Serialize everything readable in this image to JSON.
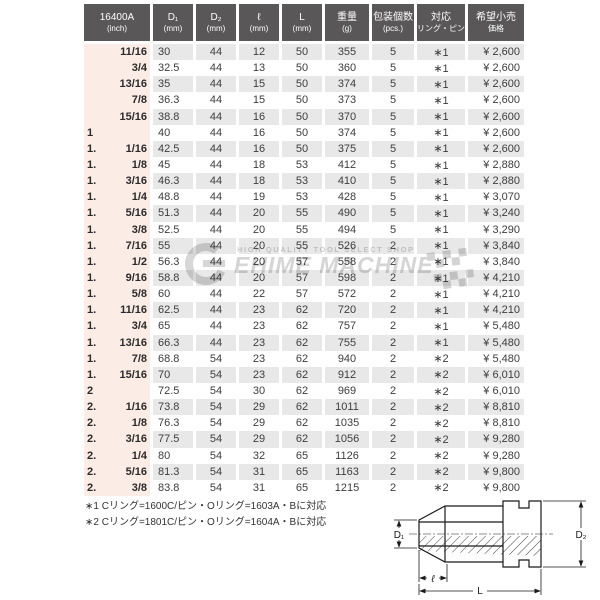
{
  "table": {
    "columns": [
      {
        "id": "inch",
        "line1": "16400A",
        "line2": "(inch)"
      },
      {
        "id": "d1",
        "line1": "D₁",
        "line2": "(mm)"
      },
      {
        "id": "d2",
        "line1": "D₂",
        "line2": "(mm)"
      },
      {
        "id": "ell",
        "line1": "ℓ",
        "line2": "(mm)"
      },
      {
        "id": "L",
        "line1": "L",
        "line2": "(mm)"
      },
      {
        "id": "weight",
        "line1": "重量",
        "line2": "(g)"
      },
      {
        "id": "pcs",
        "line1": "包装個数",
        "line2": "(pcs.)"
      },
      {
        "id": "ring",
        "line1": "対応",
        "line2": "リング・ピン"
      },
      {
        "id": "price",
        "line1": "希望小売",
        "line2": "価格"
      }
    ],
    "rows": [
      {
        "inch_whole": "",
        "inch_frac": "11/16",
        "d1": "30",
        "d2": "44",
        "ell": "12",
        "L": "50",
        "weight": "355",
        "pcs": "5",
        "ring": "∗1",
        "price": "¥ 2,600"
      },
      {
        "inch_whole": "",
        "inch_frac": "3/4",
        "d1": "32.5",
        "d2": "44",
        "ell": "13",
        "L": "50",
        "weight": "360",
        "pcs": "5",
        "ring": "∗1",
        "price": "¥ 2,600"
      },
      {
        "inch_whole": "",
        "inch_frac": "13/16",
        "d1": "35",
        "d2": "44",
        "ell": "15",
        "L": "50",
        "weight": "374",
        "pcs": "5",
        "ring": "∗1",
        "price": "¥ 2,600"
      },
      {
        "inch_whole": "",
        "inch_frac": "7/8",
        "d1": "36.3",
        "d2": "44",
        "ell": "15",
        "L": "50",
        "weight": "373",
        "pcs": "5",
        "ring": "∗1",
        "price": "¥ 2,600"
      },
      {
        "inch_whole": "",
        "inch_frac": "15/16",
        "d1": "38.8",
        "d2": "44",
        "ell": "16",
        "L": "50",
        "weight": "370",
        "pcs": "5",
        "ring": "∗1",
        "price": "¥ 2,600"
      },
      {
        "inch_whole": "1",
        "inch_frac": "",
        "d1": "40",
        "d2": "44",
        "ell": "16",
        "L": "50",
        "weight": "374",
        "pcs": "5",
        "ring": "∗1",
        "price": "¥ 2,600"
      },
      {
        "inch_whole": "1.",
        "inch_frac": "1/16",
        "d1": "42.5",
        "d2": "44",
        "ell": "16",
        "L": "50",
        "weight": "375",
        "pcs": "5",
        "ring": "∗1",
        "price": "¥ 2,600"
      },
      {
        "inch_whole": "1.",
        "inch_frac": "1/8",
        "d1": "45",
        "d2": "44",
        "ell": "18",
        "L": "53",
        "weight": "412",
        "pcs": "5",
        "ring": "∗1",
        "price": "¥ 2,880"
      },
      {
        "inch_whole": "1.",
        "inch_frac": "3/16",
        "d1": "46.3",
        "d2": "44",
        "ell": "18",
        "L": "53",
        "weight": "410",
        "pcs": "5",
        "ring": "∗1",
        "price": "¥ 2,880"
      },
      {
        "inch_whole": "1.",
        "inch_frac": "1/4",
        "d1": "48.8",
        "d2": "44",
        "ell": "19",
        "L": "53",
        "weight": "428",
        "pcs": "5",
        "ring": "∗1",
        "price": "¥ 3,070"
      },
      {
        "inch_whole": "1.",
        "inch_frac": "5/16",
        "d1": "51.3",
        "d2": "44",
        "ell": "20",
        "L": "55",
        "weight": "490",
        "pcs": "5",
        "ring": "∗1",
        "price": "¥ 3,240"
      },
      {
        "inch_whole": "1.",
        "inch_frac": "3/8",
        "d1": "52.5",
        "d2": "44",
        "ell": "20",
        "L": "55",
        "weight": "494",
        "pcs": "5",
        "ring": "∗1",
        "price": "¥ 3,290"
      },
      {
        "inch_whole": "1.",
        "inch_frac": "7/16",
        "d1": "55",
        "d2": "44",
        "ell": "20",
        "L": "55",
        "weight": "526",
        "pcs": "2",
        "ring": "∗1",
        "price": "¥ 3,840"
      },
      {
        "inch_whole": "1.",
        "inch_frac": "1/2",
        "d1": "56.3",
        "d2": "44",
        "ell": "20",
        "L": "57",
        "weight": "558",
        "pcs": "2",
        "ring": "∗1",
        "price": "¥ 3,840"
      },
      {
        "inch_whole": "1.",
        "inch_frac": "9/16",
        "d1": "58.8",
        "d2": "44",
        "ell": "20",
        "L": "57",
        "weight": "598",
        "pcs": "2",
        "ring": "∗1",
        "price": "¥ 4,210"
      },
      {
        "inch_whole": "1.",
        "inch_frac": "5/8",
        "d1": "60",
        "d2": "44",
        "ell": "22",
        "L": "57",
        "weight": "572",
        "pcs": "2",
        "ring": "∗1",
        "price": "¥ 4,210"
      },
      {
        "inch_whole": "1.",
        "inch_frac": "11/16",
        "d1": "62.5",
        "d2": "44",
        "ell": "23",
        "L": "62",
        "weight": "720",
        "pcs": "2",
        "ring": "∗1",
        "price": "¥ 4,210"
      },
      {
        "inch_whole": "1.",
        "inch_frac": "3/4",
        "d1": "65",
        "d2": "44",
        "ell": "23",
        "L": "62",
        "weight": "757",
        "pcs": "2",
        "ring": "∗1",
        "price": "¥ 5,480"
      },
      {
        "inch_whole": "1.",
        "inch_frac": "13/16",
        "d1": "66.3",
        "d2": "44",
        "ell": "23",
        "L": "62",
        "weight": "755",
        "pcs": "2",
        "ring": "∗1",
        "price": "¥ 5,480"
      },
      {
        "inch_whole": "1.",
        "inch_frac": "7/8",
        "d1": "68.8",
        "d2": "54",
        "ell": "23",
        "L": "62",
        "weight": "940",
        "pcs": "2",
        "ring": "∗2",
        "price": "¥ 5,480"
      },
      {
        "inch_whole": "1.",
        "inch_frac": "15/16",
        "d1": "70",
        "d2": "54",
        "ell": "23",
        "L": "62",
        "weight": "912",
        "pcs": "2",
        "ring": "∗2",
        "price": "¥ 6,010"
      },
      {
        "inch_whole": "2",
        "inch_frac": "",
        "d1": "72.5",
        "d2": "54",
        "ell": "30",
        "L": "62",
        "weight": "969",
        "pcs": "2",
        "ring": "∗2",
        "price": "¥ 6,010"
      },
      {
        "inch_whole": "2.",
        "inch_frac": "1/16",
        "d1": "73.8",
        "d2": "54",
        "ell": "29",
        "L": "62",
        "weight": "1011",
        "pcs": "2",
        "ring": "∗2",
        "price": "¥ 8,810"
      },
      {
        "inch_whole": "2.",
        "inch_frac": "1/8",
        "d1": "76.3",
        "d2": "54",
        "ell": "29",
        "L": "62",
        "weight": "1035",
        "pcs": "2",
        "ring": "∗2",
        "price": "¥ 8,810"
      },
      {
        "inch_whole": "2.",
        "inch_frac": "3/16",
        "d1": "77.5",
        "d2": "54",
        "ell": "29",
        "L": "62",
        "weight": "1056",
        "pcs": "2",
        "ring": "∗2",
        "price": "¥ 9,280"
      },
      {
        "inch_whole": "2.",
        "inch_frac": "1/4",
        "d1": "80",
        "d2": "54",
        "ell": "32",
        "L": "65",
        "weight": "1126",
        "pcs": "2",
        "ring": "∗2",
        "price": "¥ 9,280"
      },
      {
        "inch_whole": "2.",
        "inch_frac": "5/16",
        "d1": "81.3",
        "d2": "54",
        "ell": "31",
        "L": "65",
        "weight": "1163",
        "pcs": "2",
        "ring": "∗2",
        "price": "¥ 9,800"
      },
      {
        "inch_whole": "2.",
        "inch_frac": "3/8",
        "d1": "83.8",
        "d2": "54",
        "ell": "31",
        "L": "65",
        "weight": "1215",
        "pcs": "2",
        "ring": "∗2",
        "price": "¥ 9,800"
      }
    ]
  },
  "footnotes": {
    "line1": "∗1 Cリング=1600C/ピン・Oリング=1603A・Bに対応",
    "line2": "∗2 Cリング=1801C/ピン・Oリング=1604A・Bに対応"
  },
  "watermark": {
    "tagline": "HIGH QUALITY TOOL SELECT SHOP",
    "name": "EHIME MACHINE"
  },
  "diagram": {
    "d1_label": "D₁",
    "d2_label": "D₂",
    "ell_label": "ℓ",
    "L_label": "L"
  },
  "colors": {
    "header_bg": "#595757",
    "row_alt_bg": "#e8e8e8",
    "inch_col_bg": "#fcece6",
    "text": "#3d3d3d"
  }
}
